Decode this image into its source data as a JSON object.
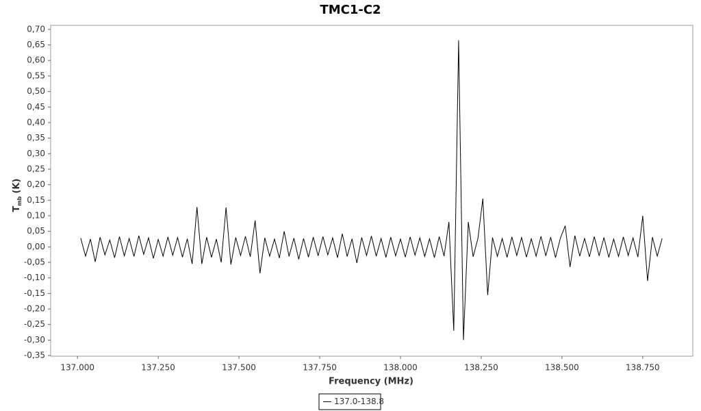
{
  "chart_data": {
    "type": "line",
    "title": "TMC1-C2",
    "x_label": "Frequency (MHz)",
    "y_label": {
      "main": "T",
      "sub": "mb",
      "unit": "(K)"
    },
    "x": [
      137.01,
      137.025,
      137.04,
      137.055,
      137.07,
      137.085,
      137.1,
      137.115,
      137.13,
      137.145,
      137.16,
      137.175,
      137.19,
      137.205,
      137.22,
      137.235,
      137.25,
      137.265,
      137.28,
      137.295,
      137.31,
      137.325,
      137.34,
      137.355,
      137.37,
      137.385,
      137.4,
      137.415,
      137.43,
      137.445,
      137.46,
      137.475,
      137.49,
      137.505,
      137.52,
      137.535,
      137.55,
      137.565,
      137.58,
      137.595,
      137.61,
      137.625,
      137.64,
      137.655,
      137.67,
      137.685,
      137.7,
      137.715,
      137.73,
      137.745,
      137.76,
      137.775,
      137.79,
      137.805,
      137.82,
      137.835,
      137.85,
      137.865,
      137.88,
      137.895,
      137.91,
      137.925,
      137.94,
      137.955,
      137.97,
      137.985,
      138.0,
      138.015,
      138.03,
      138.045,
      138.06,
      138.075,
      138.09,
      138.105,
      138.12,
      138.135,
      138.15,
      138.165,
      138.18,
      138.195,
      138.21,
      138.225,
      138.24,
      138.255,
      138.27,
      138.285,
      138.3,
      138.315,
      138.33,
      138.345,
      138.36,
      138.375,
      138.39,
      138.405,
      138.42,
      138.435,
      138.45,
      138.465,
      138.48,
      138.495,
      138.51,
      138.525,
      138.54,
      138.555,
      138.57,
      138.585,
      138.6,
      138.615,
      138.63,
      138.645,
      138.66,
      138.675,
      138.69,
      138.705,
      138.72,
      138.735,
      138.75,
      138.765,
      138.78,
      138.795,
      138.81
    ],
    "series": [
      {
        "name": "137.0-138.8",
        "color": "#000000",
        "values": [
          0.028,
          -0.03,
          0.025,
          -0.048,
          0.031,
          -0.026,
          0.022,
          -0.035,
          0.033,
          -0.029,
          0.027,
          -0.031,
          0.036,
          -0.024,
          0.029,
          -0.037,
          0.024,
          -0.03,
          0.032,
          -0.027,
          0.03,
          -0.033,
          0.026,
          -0.055,
          0.128,
          -0.055,
          0.031,
          -0.034,
          0.025,
          -0.05,
          0.127,
          -0.057,
          0.03,
          -0.028,
          0.034,
          -0.032,
          0.085,
          -0.085,
          0.029,
          -0.03,
          0.025,
          -0.036,
          0.05,
          -0.031,
          0.028,
          -0.04,
          0.027,
          -0.033,
          0.031,
          -0.029,
          0.033,
          -0.026,
          0.029,
          -0.035,
          0.042,
          -0.031,
          0.026,
          -0.052,
          0.03,
          -0.028,
          0.035,
          -0.03,
          0.027,
          -0.034,
          0.031,
          -0.029,
          0.025,
          -0.033,
          0.032,
          -0.027,
          0.029,
          -0.031,
          0.026,
          -0.035,
          0.033,
          -0.03,
          0.08,
          -0.27,
          0.665,
          -0.3,
          0.08,
          -0.032,
          0.028,
          0.155,
          -0.155,
          0.03,
          -0.031,
          0.027,
          -0.034,
          0.032,
          -0.028,
          0.03,
          -0.033,
          0.026,
          -0.03,
          0.034,
          -0.029,
          0.031,
          -0.035,
          0.028,
          0.068,
          -0.065,
          0.036,
          -0.03,
          0.027,
          -0.032,
          0.033,
          -0.029,
          0.03,
          -0.034,
          0.025,
          -0.031,
          0.032,
          -0.028,
          0.029,
          -0.033,
          0.1,
          -0.11,
          0.031,
          -0.03,
          0.027
        ]
      }
    ],
    "xlim": [
      136.917,
      138.905
    ],
    "ylim": [
      -0.352,
      0.713
    ],
    "xticks": [
      {
        "value": 137.0,
        "label": "137.000"
      },
      {
        "value": 137.25,
        "label": "137.250"
      },
      {
        "value": 137.5,
        "label": "137.500"
      },
      {
        "value": 137.75,
        "label": "137.750"
      },
      {
        "value": 138.0,
        "label": "138.000"
      },
      {
        "value": 138.25,
        "label": "138.250"
      },
      {
        "value": 138.5,
        "label": "138.500"
      },
      {
        "value": 138.75,
        "label": "138.750"
      }
    ],
    "yticks": [
      {
        "value": 0.7,
        "label": "0,70"
      },
      {
        "value": 0.65,
        "label": "0,65"
      },
      {
        "value": 0.6,
        "label": "0,60"
      },
      {
        "value": 0.55,
        "label": "0,55"
      },
      {
        "value": 0.5,
        "label": "0,50"
      },
      {
        "value": 0.45,
        "label": "0,45"
      },
      {
        "value": 0.4,
        "label": "0,40"
      },
      {
        "value": 0.35,
        "label": "0,35"
      },
      {
        "value": 0.3,
        "label": "0,30"
      },
      {
        "value": 0.25,
        "label": "0,25"
      },
      {
        "value": 0.2,
        "label": "0,20"
      },
      {
        "value": 0.15,
        "label": "0,15"
      },
      {
        "value": 0.1,
        "label": "0,10"
      },
      {
        "value": 0.05,
        "label": "0,05"
      },
      {
        "value": 0,
        "label": "0,00"
      },
      {
        "value": -0.05,
        "label": "-0,05"
      },
      {
        "value": -0.1,
        "label": "-0,10"
      },
      {
        "value": -0.15,
        "label": "-0,15"
      },
      {
        "value": -0.2,
        "label": "-0,20"
      },
      {
        "value": -0.25,
        "label": "-0,25"
      },
      {
        "value": -0.3,
        "label": "-0,30"
      },
      {
        "value": -0.35,
        "label": "-0,35"
      }
    ],
    "grid": false,
    "legend": "bottom"
  }
}
